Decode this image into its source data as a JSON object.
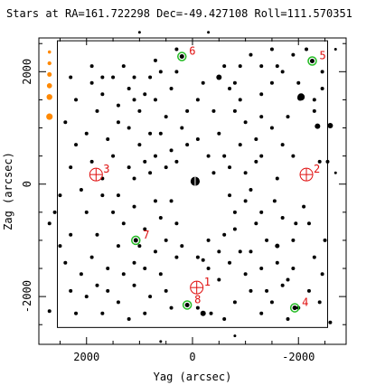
{
  "chart_data": {
    "type": "scatter",
    "title": "Stars at RA=161.722298 Dec=-49.427108 Roll=111.570351",
    "xlabel": "Yag (arcsec)",
    "ylabel": "Zag (arcsec)",
    "xlim": [
      2900,
      -2900
    ],
    "ylim": [
      -2850,
      2600
    ],
    "xticks": [
      -2000,
      0,
      2000
    ],
    "yticks": [
      -2000,
      0,
      2000
    ],
    "grid": false,
    "colors": {
      "star": "#000000",
      "guide": "#22bb22",
      "acq": "#e01010",
      "fid": "#ff8800"
    },
    "fov_box": {
      "yag": [
        -2550,
        2550
      ],
      "zag": [
        -2550,
        2550
      ]
    },
    "legend_markers": [
      {
        "yag": 2700,
        "zag": 2350
      },
      {
        "yag": 2700,
        "zag": 2150
      },
      {
        "yag": 2700,
        "zag": 1950
      },
      {
        "yag": 2700,
        "zag": 1750
      },
      {
        "yag": 2700,
        "zag": 1550
      },
      {
        "yag": 2700,
        "zag": 1200
      }
    ],
    "catalog": [
      {
        "id": "1",
        "kind": "acq",
        "yag": -80,
        "zag": -1840
      },
      {
        "id": "2",
        "kind": "acq",
        "yag": -2150,
        "zag": 170
      },
      {
        "id": "3",
        "kind": "acq",
        "yag": 1820,
        "zag": 170
      },
      {
        "id": "4",
        "kind": "guide",
        "yag": -1930,
        "zag": -2200
      },
      {
        "id": "5",
        "kind": "guide",
        "yag": -2260,
        "zag": 2190
      },
      {
        "id": "6",
        "kind": "guide",
        "yag": 200,
        "zag": 2270
      },
      {
        "id": "7",
        "kind": "guide",
        "yag": 1070,
        "zag": -1000
      },
      {
        "id": "8",
        "kind": "guide",
        "yag": 100,
        "zag": -2150
      }
    ],
    "stars": [
      {
        "yag": -50,
        "zag": 50,
        "s": 5
      },
      {
        "yag": -2050,
        "zag": 1550,
        "s": 4
      },
      {
        "yag": -2030,
        "zag": 1530,
        "s": 3
      },
      {
        "yag": -2360,
        "zag": 1030,
        "s": 3
      },
      {
        "yag": -2600,
        "zag": 1040,
        "s": 3
      },
      {
        "yag": -2600,
        "zag": -2460,
        "s": 2
      },
      {
        "yag": -1800,
        "zag": -2400,
        "s": 2
      },
      {
        "yag": -1700,
        "zag": -1800,
        "s": 2
      },
      {
        "yag": -1900,
        "zag": -1500,
        "s": 2
      },
      {
        "yag": -1600,
        "zag": -1100,
        "s": 2.5
      },
      {
        "yag": -1400,
        "zag": -1000,
        "s": 2
      },
      {
        "yag": -1950,
        "zag": -700,
        "s": 2
      },
      {
        "yag": -2100,
        "zag": -400,
        "s": 2
      },
      {
        "yag": -1550,
        "zag": -300,
        "s": 2
      },
      {
        "yag": -1000,
        "zag": -300,
        "s": 2
      },
      {
        "yag": -800,
        "zag": -500,
        "s": 2
      },
      {
        "yag": -700,
        "zag": -200,
        "s": 2
      },
      {
        "yag": -1200,
        "zag": -700,
        "s": 2
      },
      {
        "yag": -600,
        "zag": -900,
        "s": 2
      },
      {
        "yag": -300,
        "zag": -1000,
        "s": 2
      },
      {
        "yag": -200,
        "zag": -1350,
        "s": 2
      },
      {
        "yag": -300,
        "zag": -1500,
        "s": 2
      },
      {
        "yag": -100,
        "zag": -2200,
        "s": 2
      },
      {
        "yag": -200,
        "zag": -2300,
        "s": 3
      },
      {
        "yag": -350,
        "zag": -2300,
        "s": 2
      },
      {
        "yag": -800,
        "zag": -2100,
        "s": 2
      },
      {
        "yag": -1400,
        "zag": -1900,
        "s": 2
      },
      {
        "yag": -1000,
        "zag": -1600,
        "s": 2
      },
      {
        "yag": -900,
        "zag": -1200,
        "s": 2
      },
      {
        "yag": -2400,
        "zag": 400,
        "s": 2
      },
      {
        "yag": -1900,
        "zag": 500,
        "s": 2
      },
      {
        "yag": -1300,
        "zag": 500,
        "s": 2
      },
      {
        "yag": -1000,
        "zag": 200,
        "s": 2
      },
      {
        "yag": -1200,
        "zag": 800,
        "s": 2
      },
      {
        "yag": -900,
        "zag": 700,
        "s": 2
      },
      {
        "yag": -600,
        "zag": 500,
        "s": 2
      },
      {
        "yag": -400,
        "zag": 200,
        "s": 2
      },
      {
        "yag": -1300,
        "zag": 1200,
        "s": 2
      },
      {
        "yag": -1000,
        "zag": 1100,
        "s": 2
      },
      {
        "yag": -800,
        "zag": 1300,
        "s": 2
      },
      {
        "yag": -900,
        "zag": 1500,
        "s": 2
      },
      {
        "yag": -700,
        "zag": 1700,
        "s": 2
      },
      {
        "yag": -500,
        "zag": 1900,
        "s": 3
      },
      {
        "yag": -200,
        "zag": 1800,
        "s": 2
      },
      {
        "yag": -600,
        "zag": 2100,
        "s": 2
      },
      {
        "yag": -1500,
        "zag": 2400,
        "s": 2
      },
      {
        "yag": -1700,
        "zag": 2000,
        "s": 2
      },
      {
        "yag": -1500,
        "zag": 1800,
        "s": 2
      },
      {
        "yag": -1300,
        "zag": 1600,
        "s": 2
      },
      {
        "yag": -2300,
        "zag": 1300,
        "s": 2
      },
      {
        "yag": -2550,
        "zag": 400,
        "s": 2
      },
      {
        "yag": -2700,
        "zag": 200,
        "s": 1.5
      },
      {
        "yag": 300,
        "zag": 2400,
        "s": 2
      },
      {
        "yag": 600,
        "zag": 2000,
        "s": 2
      },
      {
        "yag": 800,
        "zag": 1900,
        "s": 2
      },
      {
        "yag": 1100,
        "zag": 1900,
        "s": 2
      },
      {
        "yag": 1700,
        "zag": 1900,
        "s": 2
      },
      {
        "yag": 1900,
        "zag": 1800,
        "s": 2
      },
      {
        "yag": 1700,
        "zag": 1600,
        "s": 2
      },
      {
        "yag": 1400,
        "zag": 1400,
        "s": 2
      },
      {
        "yag": 1000,
        "zag": 1300,
        "s": 2
      },
      {
        "yag": 700,
        "zag": 1500,
        "s": 2
      },
      {
        "yag": 500,
        "zag": 1200,
        "s": 2
      },
      {
        "yag": 200,
        "zag": 1000,
        "s": 2
      },
      {
        "yag": 100,
        "zag": 700,
        "s": 2
      },
      {
        "yag": 400,
        "zag": 600,
        "s": 2
      },
      {
        "yag": 800,
        "zag": 900,
        "s": 2
      },
      {
        "yag": 1200,
        "zag": 1000,
        "s": 2
      },
      {
        "yag": 1600,
        "zag": 800,
        "s": 2
      },
      {
        "yag": 2000,
        "zag": 900,
        "s": 2
      },
      {
        "yag": 2200,
        "zag": 700,
        "s": 2
      },
      {
        "yag": 2300,
        "zag": 300,
        "s": 2
      },
      {
        "yag": 1900,
        "zag": 400,
        "s": 2
      },
      {
        "yag": 1500,
        "zag": 500,
        "s": 2
      },
      {
        "yag": 1200,
        "zag": 300,
        "s": 2
      },
      {
        "yag": 800,
        "zag": 200,
        "s": 2
      },
      {
        "yag": 500,
        "zag": 300,
        "s": 2
      },
      {
        "yag": 1400,
        "zag": -200,
        "s": 2
      },
      {
        "yag": 1700,
        "zag": -200,
        "s": 2
      },
      {
        "yag": 2000,
        "zag": -500,
        "s": 2
      },
      {
        "yag": 2300,
        "zag": -900,
        "s": 2
      },
      {
        "yag": 1800,
        "zag": -900,
        "s": 2
      },
      {
        "yag": 1300,
        "zag": -700,
        "s": 2
      },
      {
        "yag": 900,
        "zag": -800,
        "s": 2
      },
      {
        "yag": 600,
        "zag": -600,
        "s": 2
      },
      {
        "yag": 400,
        "zag": -300,
        "s": 2
      },
      {
        "yag": 300,
        "zag": -700,
        "s": 2
      },
      {
        "yag": 700,
        "zag": -1200,
        "s": 2
      },
      {
        "yag": 1100,
        "zag": -1400,
        "s": 2
      },
      {
        "yag": 1400,
        "zag": -1100,
        "s": 2
      },
      {
        "yag": 1600,
        "zag": -1500,
        "s": 2
      },
      {
        "yag": 1900,
        "zag": -1300,
        "s": 2
      },
      {
        "yag": 2100,
        "zag": -1600,
        "s": 2
      },
      {
        "yag": 2400,
        "zag": -1400,
        "s": 2
      },
      {
        "yag": 2700,
        "zag": -700,
        "s": 2
      },
      {
        "yag": 2700,
        "zag": -2260,
        "s": 2
      },
      {
        "yag": 2200,
        "zag": -2300,
        "s": 2
      },
      {
        "yag": 1400,
        "zag": -2100,
        "s": 2
      },
      {
        "yag": 1200,
        "zag": -2400,
        "s": 2
      },
      {
        "yag": 800,
        "zag": -2000,
        "s": 2
      },
      {
        "yag": 500,
        "zag": -1900,
        "s": 2
      },
      {
        "yag": 600,
        "zag": -1600,
        "s": 2
      },
      {
        "yag": 1100,
        "zag": -1800,
        "s": 2
      },
      {
        "yag": 1800,
        "zag": -1800,
        "s": 2
      },
      {
        "yag": 2300,
        "zag": -1900,
        "s": 2
      },
      {
        "yag": -1300,
        "zag": -2300,
        "s": 2
      },
      {
        "yag": -2300,
        "zag": -1300,
        "s": 2
      },
      {
        "yag": -2200,
        "zag": -700,
        "s": 2
      },
      {
        "yag": -2500,
        "zag": -1000,
        "s": 2
      },
      {
        "yag": -2450,
        "zag": -1600,
        "s": 2
      },
      {
        "yag": -2200,
        "zag": -1900,
        "s": 2
      },
      {
        "yag": -300,
        "zag": 2700,
        "s": 1.5
      },
      {
        "yag": 1000,
        "zag": 2700,
        "s": 1.5
      },
      {
        "yag": -800,
        "zag": -2700,
        "s": 1.5
      },
      {
        "yag": 600,
        "zag": -2800,
        "s": 1.5
      },
      {
        "yag": -2700,
        "zag": 2400,
        "s": 1.5
      },
      {
        "yag": -2150,
        "zag": 2400,
        "s": 2
      },
      {
        "yag": -1900,
        "zag": 2300,
        "s": 2
      },
      {
        "yag": -2450,
        "zag": 2000,
        "s": 2
      },
      {
        "yag": -2450,
        "zag": 1700,
        "s": 2
      },
      {
        "yag": -2300,
        "zag": 1500,
        "s": 2
      },
      {
        "yag": -1300,
        "zag": 2100,
        "s": 2
      },
      {
        "yag": -1100,
        "zag": 2300,
        "s": 2
      },
      {
        "yag": -900,
        "zag": 2100,
        "s": 2
      },
      {
        "yag": -100,
        "zag": 1500,
        "s": 2
      },
      {
        "yag": 100,
        "zag": 1300,
        "s": 2
      },
      {
        "yag": 400,
        "zag": 1700,
        "s": 2
      },
      {
        "yag": 700,
        "zag": 2200,
        "s": 2
      },
      {
        "yag": 1300,
        "zag": 2100,
        "s": 2
      },
      {
        "yag": 1900,
        "zag": 2100,
        "s": 2
      },
      {
        "yag": 2300,
        "zag": 1900,
        "s": 2
      },
      {
        "yag": 2200,
        "zag": 1500,
        "s": 2
      },
      {
        "yag": 1800,
        "zag": 1300,
        "s": 2
      },
      {
        "yag": 2400,
        "zag": 1100,
        "s": 2
      },
      {
        "yag": 1400,
        "zag": 1100,
        "s": 2
      },
      {
        "yag": 1000,
        "zag": 700,
        "s": 2
      },
      {
        "yag": 700,
        "zag": 500,
        "s": 2
      },
      {
        "yag": 1700,
        "zag": 100,
        "s": 2
      },
      {
        "yag": 2100,
        "zag": -100,
        "s": 2
      },
      {
        "yag": 2500,
        "zag": -200,
        "s": 2
      },
      {
        "yag": 2600,
        "zag": -500,
        "s": 2
      },
      {
        "yag": 2500,
        "zag": -1100,
        "s": 2
      },
      {
        "yag": 1000,
        "zag": -1100,
        "s": 2
      },
      {
        "yag": 200,
        "zag": -1100,
        "s": 2
      },
      {
        "yag": -100,
        "zag": -1300,
        "s": 2
      },
      {
        "yag": -500,
        "zag": -1200,
        "s": 2
      },
      {
        "yag": -700,
        "zag": -1400,
        "s": 2
      },
      {
        "yag": -500,
        "zag": -1700,
        "s": 2
      },
      {
        "yag": -1100,
        "zag": -1900,
        "s": 2
      },
      {
        "yag": -1500,
        "zag": -2100,
        "s": 2
      },
      {
        "yag": -1600,
        "zag": -1400,
        "s": 2
      },
      {
        "yag": -1900,
        "zag": -1000,
        "s": 2
      },
      {
        "yag": -1700,
        "zag": -600,
        "s": 2
      },
      {
        "yag": -1300,
        "zag": -500,
        "s": 2
      },
      {
        "yag": -1100,
        "zag": -100,
        "s": 2
      },
      {
        "yag": -1600,
        "zag": 100,
        "s": 2
      },
      {
        "yag": -700,
        "zag": 300,
        "s": 2
      },
      {
        "yag": -300,
        "zag": 500,
        "s": 2
      },
      {
        "yag": -100,
        "zag": 800,
        "s": 2
      },
      {
        "yag": -500,
        "zag": 900,
        "s": 2
      },
      {
        "yag": -1200,
        "zag": 400,
        "s": 2
      },
      {
        "yag": -1700,
        "zag": 700,
        "s": 2
      },
      {
        "yag": -1500,
        "zag": 1000,
        "s": 2
      },
      {
        "yag": -1800,
        "zag": 1200,
        "s": 2
      },
      {
        "yag": -2000,
        "zag": 1800,
        "s": 2
      },
      {
        "yag": -1600,
        "zag": 2100,
        "s": 2
      },
      {
        "yag": -800,
        "zag": 1800,
        "s": 2
      },
      {
        "yag": -400,
        "zag": 1300,
        "s": 2
      },
      {
        "yag": 300,
        "zag": 2000,
        "s": 2
      },
      {
        "yag": 900,
        "zag": 1600,
        "s": 2
      },
      {
        "yag": 1100,
        "zag": 1500,
        "s": 2
      },
      {
        "yag": 1200,
        "zag": 1700,
        "s": 2
      },
      {
        "yag": 1500,
        "zag": 1900,
        "s": 2
      },
      {
        "yag": 600,
        "zag": 900,
        "s": 2
      },
      {
        "yag": 300,
        "zag": 400,
        "s": 2
      },
      {
        "yag": 900,
        "zag": 400,
        "s": 2
      },
      {
        "yag": 1100,
        "zag": 100,
        "s": 2
      },
      {
        "yag": 1500,
        "zag": -500,
        "s": 2
      },
      {
        "yag": 1100,
        "zag": -400,
        "s": 2
      },
      {
        "yag": 700,
        "zag": -300,
        "s": 2
      },
      {
        "yag": 500,
        "zag": -1000,
        "s": 2
      },
      {
        "yag": 900,
        "zag": -1500,
        "s": 2
      },
      {
        "yag": 1300,
        "zag": -1600,
        "s": 2
      },
      {
        "yag": 1600,
        "zag": -1900,
        "s": 2
      },
      {
        "yag": 2000,
        "zag": -2000,
        "s": 2
      },
      {
        "yag": 1700,
        "zag": -2300,
        "s": 2
      },
      {
        "yag": 900,
        "zag": -2300,
        "s": 2
      },
      {
        "yag": 400,
        "zag": -2200,
        "s": 2
      },
      {
        "yag": 300,
        "zag": -1300,
        "s": 2
      },
      {
        "yag": -800,
        "zag": -800,
        "s": 2
      },
      {
        "yag": -1100,
        "zag": -1200,
        "s": 2
      },
      {
        "yag": -1300,
        "zag": -1500,
        "s": 2
      },
      {
        "yag": -1800,
        "zag": -1700,
        "s": 2
      },
      {
        "yag": -2000,
        "zag": -2200,
        "s": 2
      },
      {
        "yag": -2400,
        "zag": -2100,
        "s": 2
      },
      {
        "yag": -600,
        "zag": -2400,
        "s": 2
      }
    ]
  }
}
